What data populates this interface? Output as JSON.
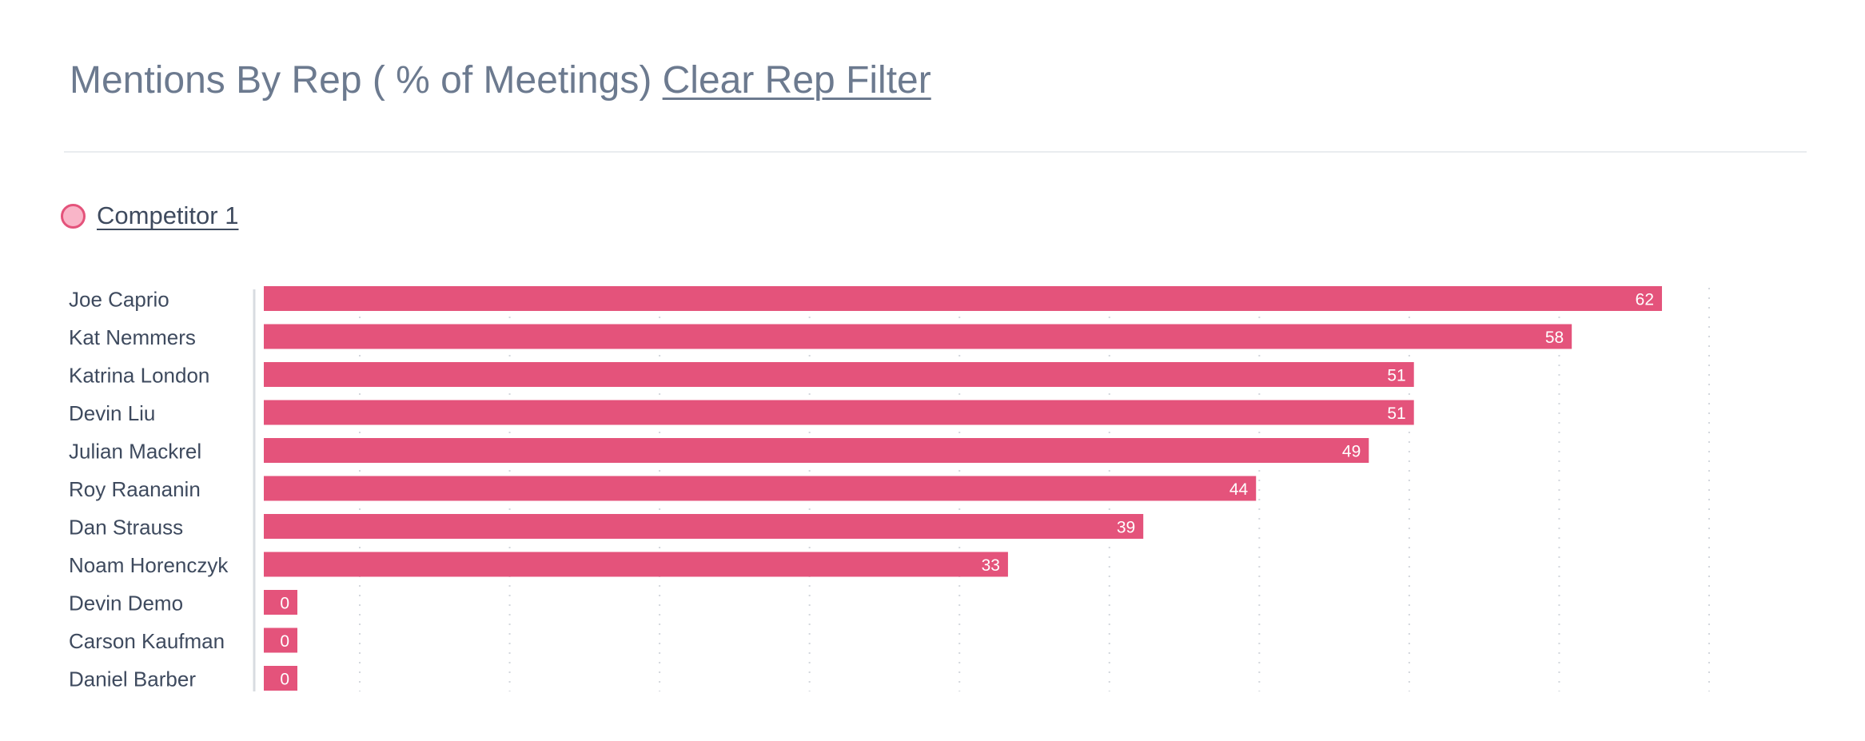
{
  "header": {
    "title": "Mentions By Rep ( % of Meetings)",
    "clear_filter_label": "Clear Rep Filter"
  },
  "legend": {
    "label": "Competitor 1",
    "fill_color": "#f9b5c8",
    "stroke_color": "#e4537b"
  },
  "colors": {
    "bar": "#e4537b",
    "bar_label": "#ffffff",
    "category_text": "#3e4a5e",
    "grid": "#d3d7dd",
    "axis": "#d8dce1"
  },
  "chart_data": {
    "type": "bar",
    "orientation": "horizontal",
    "categories": [
      "Joe Caprio",
      "Kat Nemmers",
      "Katrina London",
      "Devin Liu",
      "Julian Mackrel",
      "Roy Raananin",
      "Dan Strauss",
      "Noam Horenczyk",
      "Devin Demo",
      "Carson Kaufman",
      "Daniel Barber"
    ],
    "series": [
      {
        "name": "Competitor 1",
        "values": [
          62,
          58,
          51,
          51,
          49,
          44,
          39,
          33,
          0,
          0,
          0
        ]
      }
    ],
    "xlim": [
      0,
      70
    ],
    "grid": true,
    "grid_style": "dotted",
    "data_labels": true
  }
}
